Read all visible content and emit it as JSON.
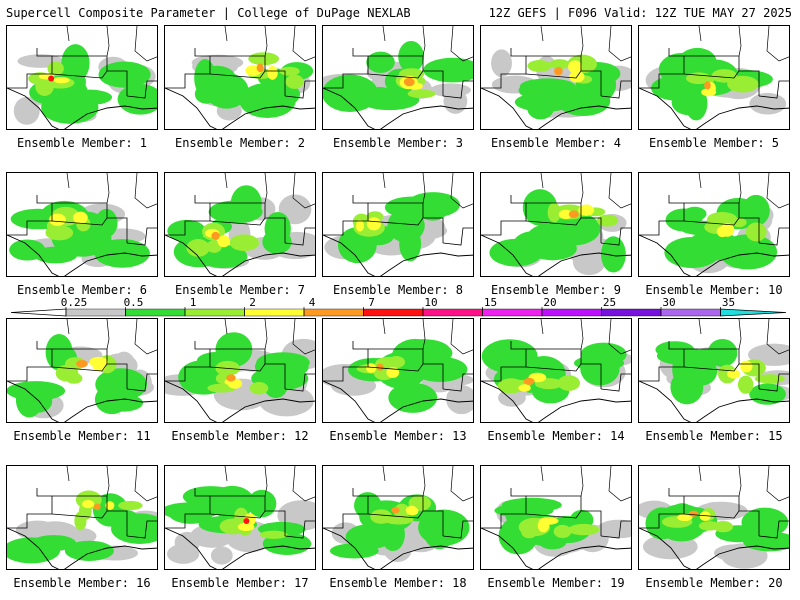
{
  "header": {
    "left_title": "Supercell Composite Parameter | College of DuPage NEXLAB",
    "right_title": "12Z GEFS | F096 Valid: 12Z TUE MAY 27 2025"
  },
  "caption_prefix": "Ensemble Member: ",
  "members": [
    {
      "label": "Ensemble Member: 1",
      "n": 1
    },
    {
      "label": "Ensemble Member: 2",
      "n": 2
    },
    {
      "label": "Ensemble Member: 3",
      "n": 3
    },
    {
      "label": "Ensemble Member: 4",
      "n": 4
    },
    {
      "label": "Ensemble Member: 5",
      "n": 5
    },
    {
      "label": "Ensemble Member: 6",
      "n": 6
    },
    {
      "label": "Ensemble Member: 7",
      "n": 7
    },
    {
      "label": "Ensemble Member: 8",
      "n": 8
    },
    {
      "label": "Ensemble Member: 9",
      "n": 9
    },
    {
      "label": "Ensemble Member: 10",
      "n": 10
    },
    {
      "label": "Ensemble Member: 11",
      "n": 11
    },
    {
      "label": "Ensemble Member: 12",
      "n": 12
    },
    {
      "label": "Ensemble Member: 13",
      "n": 13
    },
    {
      "label": "Ensemble Member: 14",
      "n": 14
    },
    {
      "label": "Ensemble Member: 15",
      "n": 15
    },
    {
      "label": "Ensemble Member: 16",
      "n": 16
    },
    {
      "label": "Ensemble Member: 17",
      "n": 17
    },
    {
      "label": "Ensemble Member: 18",
      "n": 18
    },
    {
      "label": "Ensemble Member: 19",
      "n": 19
    },
    {
      "label": "Ensemble Member: 20",
      "n": 20
    }
  ],
  "legend": {
    "thresholds": [
      "0.25",
      "0.5",
      "1",
      "2",
      "4",
      "7",
      "10",
      "15",
      "20",
      "25",
      "30",
      "35"
    ],
    "colors": [
      "#ffffff",
      "#c8c8c8",
      "#33dd33",
      "#99ee33",
      "#ffff33",
      "#ff9922",
      "#ff1111",
      "#ff1188",
      "#ee22ee",
      "#bb11ff",
      "#7711dd",
      "#aa66ee",
      "#22dddd"
    ]
  }
}
